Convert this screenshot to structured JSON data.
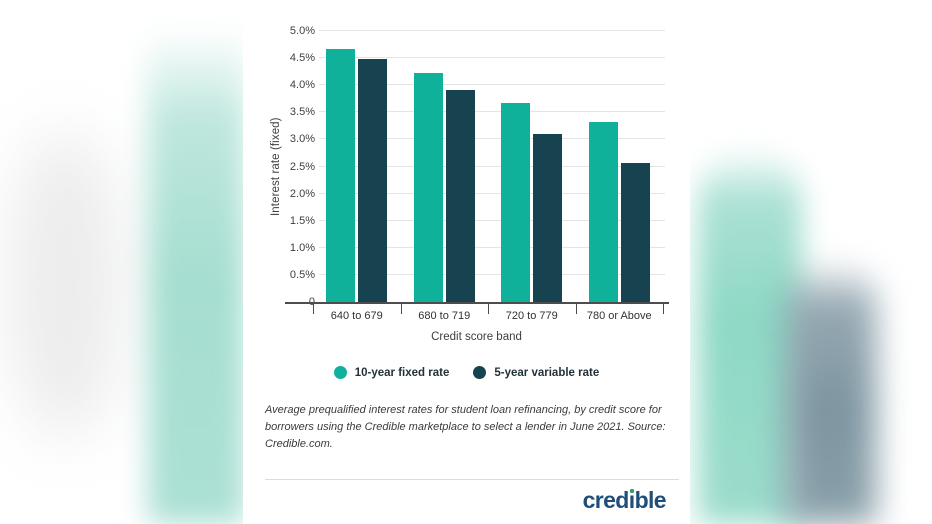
{
  "colors": {
    "teal_bar": "#0fb19b",
    "dark_teal_bar": "#16434f",
    "background_teal_blur": "#a6ded1",
    "background_gray_blur": "#8aa0aa",
    "gridline": "#e4e4e4",
    "axis": "#4d4d4d",
    "logo_blue": "#1f4e79",
    "logo_dot_green": "#2f9e5f"
  },
  "chart_data": {
    "type": "bar",
    "title": "",
    "categories": [
      "640 to 679",
      "680 to 719",
      "720 to 779",
      "780 or Above"
    ],
    "series": [
      {
        "name": "10-year fixed rate",
        "color": "#0fb19b",
        "values": [
          4.67,
          4.23,
          3.68,
          3.33
        ]
      },
      {
        "name": "5-year variable rate",
        "color": "#16434f",
        "values": [
          4.48,
          3.91,
          3.1,
          2.57
        ]
      }
    ],
    "xlabel": "Credit score band",
    "ylabel": "Interest rate (fixed)",
    "y_ticks": [
      "5.0%",
      "4.5%",
      "4.0%",
      "3.5%",
      "3.0%",
      "2.5%",
      "2.0%",
      "1.5%",
      "1.0%",
      "0.5%",
      "0"
    ],
    "ylim": [
      0,
      5
    ],
    "grid": true,
    "legend_position": "bottom"
  },
  "caption": "Average prequalified interest rates for student loan refinancing, by credit score for borrowers using the Credible marketplace to select a lender in June 2021. Source: Credible.com.",
  "logo": {
    "text_before": "cred",
    "i_glyph": "ı",
    "text_after": "ble",
    "full_name": "credible"
  }
}
